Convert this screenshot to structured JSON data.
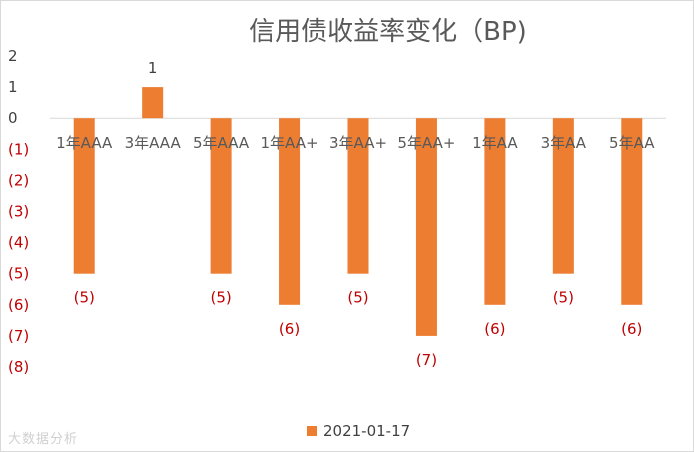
{
  "chart_data": {
    "type": "bar",
    "title": "信用债收益率变化（BP)",
    "categories": [
      "1年AAA",
      "3年AAA",
      "5年AAA",
      "1年AA+",
      "3年AA+",
      "5年AA+",
      "1年AA",
      "3年AA",
      "5年AA"
    ],
    "series": [
      {
        "name": "2021-01-17",
        "values": [
          -5,
          1,
          -5,
          -6,
          -5,
          -7,
          -6,
          -5,
          -6
        ],
        "color": "#ed7d31"
      }
    ],
    "data_labels": [
      "(5)",
      "1",
      "(5)",
      "(6)",
      "(5)",
      "(7)",
      "(6)",
      "(5)",
      "(6)"
    ],
    "y_ticks": [
      {
        "value": 2,
        "label": "2"
      },
      {
        "value": 1,
        "label": "1"
      },
      {
        "value": 0,
        "label": "0"
      },
      {
        "value": -1,
        "label": "(1)"
      },
      {
        "value": -2,
        "label": "(2)"
      },
      {
        "value": -3,
        "label": "(3)"
      },
      {
        "value": -4,
        "label": "(4)"
      },
      {
        "value": -5,
        "label": "(5)"
      },
      {
        "value": -6,
        "label": "(6)"
      },
      {
        "value": -7,
        "label": "(7)"
      },
      {
        "value": -8,
        "label": "(8)"
      }
    ],
    "ylim": [
      -8,
      2
    ],
    "negative_label_color": "#c00000",
    "legend_position": "bottom",
    "grid": false
  },
  "watermark": "大数据分析"
}
